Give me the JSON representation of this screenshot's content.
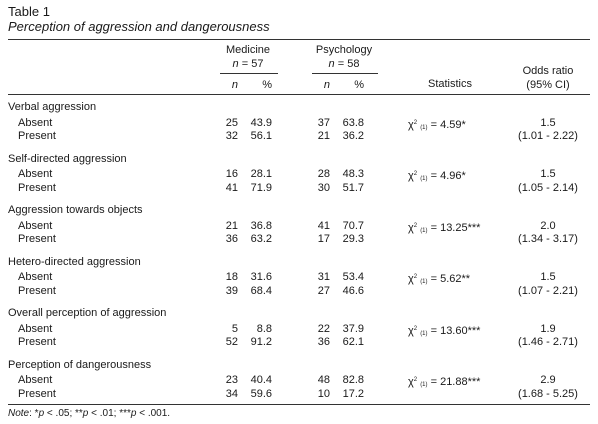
{
  "caption": {
    "table_label": "Table 1",
    "subtitle": "Perception of aggression and dangerousness"
  },
  "header": {
    "group1": "Medicine",
    "group1_n_label": "n",
    "group1_n_value": "= 57",
    "group2": "Psychology",
    "group2_n_label": "n",
    "group2_n_value": "= 58",
    "col_n": "n",
    "col_pct": "%",
    "statistics": "Statistics",
    "odds_ratio": "Odds ratio",
    "ci": "(95% CI)"
  },
  "chi_symbol": "χ",
  "chi_df": "(1)",
  "chi_sq": "2",
  "sections": [
    {
      "title": "Verbal aggression",
      "rows": [
        {
          "label": "Absent",
          "m_n": "25",
          "m_pct": "43.9",
          "p_n": "37",
          "p_pct": "63.8"
        },
        {
          "label": "Present",
          "m_n": "32",
          "m_pct": "56.1",
          "p_n": "21",
          "p_pct": "36.2"
        }
      ],
      "stat_value": "= 4.59*",
      "or": "1.5",
      "ci": "(1.01 - 2.22)"
    },
    {
      "title": "Self-directed aggression",
      "rows": [
        {
          "label": "Absent",
          "m_n": "16",
          "m_pct": "28.1",
          "p_n": "28",
          "p_pct": "48.3"
        },
        {
          "label": "Present",
          "m_n": "41",
          "m_pct": "71.9",
          "p_n": "30",
          "p_pct": "51.7"
        }
      ],
      "stat_value": "= 4.96*",
      "or": "1.5",
      "ci": "(1.05 - 2.14)"
    },
    {
      "title": "Aggression towards objects",
      "rows": [
        {
          "label": "Absent",
          "m_n": "21",
          "m_pct": "36.8",
          "p_n": "41",
          "p_pct": "70.7"
        },
        {
          "label": "Present",
          "m_n": "36",
          "m_pct": "63.2",
          "p_n": "17",
          "p_pct": "29.3"
        }
      ],
      "stat_value": "= 13.25***",
      "or": "2.0",
      "ci": "(1.34 - 3.17)"
    },
    {
      "title": "Hetero-directed aggression",
      "rows": [
        {
          "label": "Absent",
          "m_n": "18",
          "m_pct": "31.6",
          "p_n": "31",
          "p_pct": "53.4"
        },
        {
          "label": "Present",
          "m_n": "39",
          "m_pct": "68.4",
          "p_n": "27",
          "p_pct": "46.6"
        }
      ],
      "stat_value": "= 5.62**",
      "or": "1.5",
      "ci": "(1.07 - 2.21)"
    },
    {
      "title": "Overall perception of aggression",
      "rows": [
        {
          "label": "Absent",
          "m_n": "5",
          "m_pct": "8.8",
          "p_n": "22",
          "p_pct": "37.9"
        },
        {
          "label": "Present",
          "m_n": "52",
          "m_pct": "91.2",
          "p_n": "36",
          "p_pct": "62.1"
        }
      ],
      "stat_value": "= 13.60***",
      "or": "1.9",
      "ci": "(1.46 - 2.71)"
    },
    {
      "title": "Perception of dangerousness",
      "rows": [
        {
          "label": "Absent",
          "m_n": "23",
          "m_pct": "40.4",
          "p_n": "48",
          "p_pct": "82.8"
        },
        {
          "label": "Present",
          "m_n": "34",
          "m_pct": "59.6",
          "p_n": "10",
          "p_pct": "17.2"
        }
      ],
      "stat_value": "= 21.88***",
      "or": "2.9",
      "ci": "(1.68 - 5.25)"
    }
  ],
  "note": {
    "label": "Note",
    "colon": ": *",
    "p1": "p",
    "t1": " < .05; **",
    "p2": "p",
    "t2": " < .01; ***",
    "p3": "p",
    "t3": " < .001."
  }
}
